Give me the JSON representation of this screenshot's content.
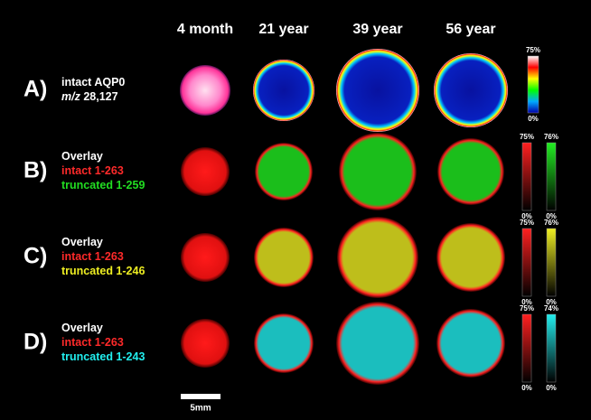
{
  "columns": [
    "4 month",
    "21 year",
    "39 year",
    "56 year"
  ],
  "rows": [
    {
      "label": "A)",
      "lines": [
        {
          "text": "intact AQP0",
          "color": "#ffffff"
        },
        {
          "italic": "m/z",
          "text": "28,127",
          "color": "#ffffff"
        }
      ],
      "scales": [
        {
          "top": "75%",
          "bottom": "0%",
          "color": "rainbow"
        }
      ]
    },
    {
      "label": "B)",
      "lines": [
        {
          "text": "Overlay",
          "color": "#ffffff"
        },
        {
          "text": "intact 1-263",
          "color": "#ff2a2a"
        },
        {
          "text": "truncated 1-259",
          "color": "#22dd22"
        }
      ],
      "scales": [
        {
          "top": "75%",
          "bottom": "0%",
          "color": "#ff2020"
        },
        {
          "top": "76%",
          "bottom": "0%",
          "color": "#22ee22"
        }
      ]
    },
    {
      "label": "C)",
      "lines": [
        {
          "text": "Overlay",
          "color": "#ffffff"
        },
        {
          "text": "intact 1-263",
          "color": "#ff2a2a"
        },
        {
          "text": "truncated 1-246",
          "color": "#eeee22"
        }
      ],
      "scales": [
        {
          "top": "75%",
          "bottom": "0%",
          "color": "#ff2020"
        },
        {
          "top": "76%",
          "bottom": "0%",
          "color": "#eeee22"
        }
      ]
    },
    {
      "label": "D)",
      "lines": [
        {
          "text": "Overlay",
          "color": "#ffffff"
        },
        {
          "text": "intact 1-263",
          "color": "#ff2a2a"
        },
        {
          "text": "truncated 1-243",
          "color": "#22eeee"
        }
      ],
      "scales": [
        {
          "top": "75%",
          "bottom": "0%",
          "color": "#ff2020"
        },
        {
          "top": "74%",
          "bottom": "0%",
          "color": "#22eeee"
        }
      ]
    }
  ],
  "scale_bar": "5mm"
}
